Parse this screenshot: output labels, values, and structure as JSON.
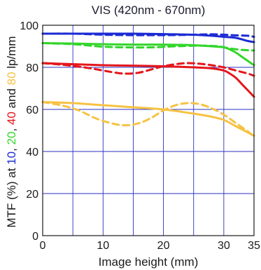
{
  "chart_data": {
    "type": "line",
    "title": "VIS (420nm - 670nm)",
    "xlabel": "Image height (mm)",
    "ylabel": {
      "prefix": "MTF (%) at ",
      "parts": [
        {
          "text": "10",
          "color": "#1c2bd4"
        },
        {
          "text": ", ",
          "color": "#1a1a1a"
        },
        {
          "text": "20",
          "color": "#32d62a"
        },
        {
          "text": ", ",
          "color": "#1a1a1a"
        },
        {
          "text": "40",
          "color": "#e4161c"
        },
        {
          "text": " and ",
          "color": "#1a1a1a"
        },
        {
          "text": "80",
          "color": "#f6c243"
        },
        {
          "text": " lp/mm",
          "color": "#1a1a1a"
        }
      ]
    },
    "xlim": [
      0,
      35
    ],
    "ylim": [
      0,
      100
    ],
    "xticks": [
      0,
      10,
      20,
      30,
      35
    ],
    "yticks": [
      0,
      20,
      40,
      60,
      80,
      100
    ],
    "grid_x": [
      0,
      5,
      10,
      15,
      20,
      25,
      30,
      35
    ],
    "grid_y": [
      0,
      20,
      40,
      60,
      80,
      100
    ],
    "grid": true,
    "series": [
      {
        "freq": "10 lp/mm",
        "kind": "sagittal",
        "dash": false,
        "color": "#1c2bd4",
        "x": [
          0,
          5,
          10,
          15,
          20,
          25,
          28,
          30,
          32,
          34,
          35
        ],
        "y": [
          96,
          96,
          96,
          96,
          95.8,
          95.5,
          95,
          94.5,
          94,
          92.5,
          92
        ]
      },
      {
        "freq": "10 lp/mm",
        "kind": "tangential",
        "dash": true,
        "color": "#1c2bd4",
        "x": [
          0,
          5,
          10,
          15,
          20,
          25,
          28,
          30,
          32,
          34,
          35
        ],
        "y": [
          96,
          96,
          95.5,
          95.3,
          95.3,
          95.5,
          95.7,
          95.5,
          95.2,
          95,
          94.5
        ]
      },
      {
        "freq": "20 lp/mm",
        "kind": "sagittal",
        "dash": false,
        "color": "#32d62a",
        "x": [
          0,
          5,
          10,
          15,
          20,
          25,
          28,
          30,
          31,
          32,
          33,
          34,
          35
        ],
        "y": [
          91.5,
          91.3,
          91,
          90.8,
          90.8,
          90.5,
          90,
          89.5,
          88.5,
          87,
          85,
          83,
          81
        ]
      },
      {
        "freq": "20 lp/mm",
        "kind": "tangential",
        "dash": true,
        "color": "#32d62a",
        "x": [
          0,
          5,
          10,
          14,
          18,
          22,
          26,
          29,
          31,
          33,
          35
        ],
        "y": [
          91.5,
          91,
          89.8,
          89.5,
          89.5,
          90,
          90.3,
          90,
          89,
          88.3,
          88
        ]
      },
      {
        "freq": "40 lp/mm",
        "kind": "sagittal",
        "dash": false,
        "color": "#e4161c",
        "x": [
          0,
          5,
          10,
          15,
          20,
          25,
          28,
          30,
          31,
          32,
          33,
          34,
          35
        ],
        "y": [
          82,
          81.5,
          81,
          80.8,
          80.5,
          80,
          79.5,
          78.5,
          77,
          75,
          72,
          69,
          66
        ]
      },
      {
        "freq": "40 lp/mm",
        "kind": "tangential",
        "dash": true,
        "color": "#e4161c",
        "x": [
          0,
          4,
          8,
          12,
          14,
          16,
          18,
          20,
          22,
          24,
          26,
          28,
          30,
          32,
          34,
          35
        ],
        "y": [
          82,
          81,
          79.5,
          77.5,
          77,
          77.5,
          79,
          80.5,
          81.5,
          82,
          81.7,
          81,
          80,
          78.5,
          77,
          76
        ]
      },
      {
        "freq": "80 lp/mm",
        "kind": "sagittal",
        "dash": false,
        "color": "#f6c243",
        "x": [
          0,
          5,
          10,
          15,
          20,
          25,
          28,
          30,
          32,
          34,
          35
        ],
        "y": [
          63.5,
          63,
          62,
          61,
          60,
          58,
          56.5,
          55,
          52,
          49,
          47.5
        ]
      },
      {
        "freq": "80 lp/mm",
        "kind": "tangential",
        "dash": true,
        "color": "#f6c243",
        "x": [
          0,
          3,
          6,
          9,
          12,
          14,
          16,
          18,
          20,
          22,
          24,
          26,
          28,
          30,
          32,
          34,
          35
        ],
        "y": [
          63.5,
          62,
          59.5,
          55.5,
          53,
          52.5,
          53.5,
          56,
          59.5,
          62,
          63,
          62.5,
          60.5,
          57.5,
          53.5,
          49.5,
          47
        ]
      }
    ]
  }
}
